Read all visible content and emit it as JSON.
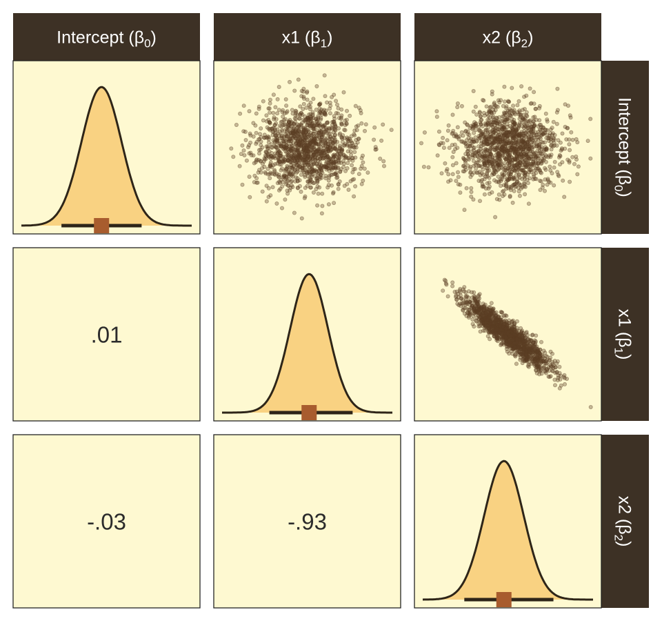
{
  "chart_data": {
    "type": "pairs",
    "parameters": [
      {
        "id": "b0",
        "label": "Intercept",
        "symbol": "β",
        "subscript": "0"
      },
      {
        "id": "b1",
        "label": "x1",
        "symbol": "β",
        "subscript": "1"
      },
      {
        "id": "b2",
        "label": "x2",
        "symbol": "β",
        "subscript": "2"
      }
    ],
    "densities": [
      {
        "parameter": "b0",
        "mean": 0,
        "sd": 1,
        "xlim": [
          -4,
          4.5
        ],
        "point_estimate": 0,
        "interval": [
          -2,
          2
        ]
      },
      {
        "parameter": "b1",
        "mean": 0,
        "sd": 1,
        "xlim": [
          -4.6,
          4.4
        ],
        "point_estimate": 0,
        "interval": [
          -2.1,
          2.3
        ]
      },
      {
        "parameter": "b2",
        "mean": 0,
        "sd": 1,
        "xlim": [
          -4.1,
          4.5
        ],
        "point_estimate": 0,
        "interval": [
          -2,
          2.5
        ]
      }
    ],
    "correlations": [
      {
        "row": "b1",
        "col": "b0",
        "value": ".01"
      },
      {
        "row": "b2",
        "col": "b0",
        "value": "-.03"
      },
      {
        "row": "b2",
        "col": "b1",
        "value": "-.93"
      }
    ],
    "scatter_panels": [
      {
        "row": "b0",
        "col": "b1",
        "correlation": 0.01
      },
      {
        "row": "b0",
        "col": "b2",
        "correlation": -0.03
      },
      {
        "row": "b1",
        "col": "b2",
        "correlation": -0.93
      }
    ],
    "colors": {
      "panel_bg": "#fef9d1",
      "strip_bg": "#3d3125",
      "strip_text": "#ffffff",
      "density_fill": "#f9d282",
      "density_line": "#2e2518",
      "interval": "#2e2518",
      "point_estimate": "#a85c2e",
      "scatter_points": "#5c3e24",
      "correlation_text": "#2b2b2b"
    }
  }
}
